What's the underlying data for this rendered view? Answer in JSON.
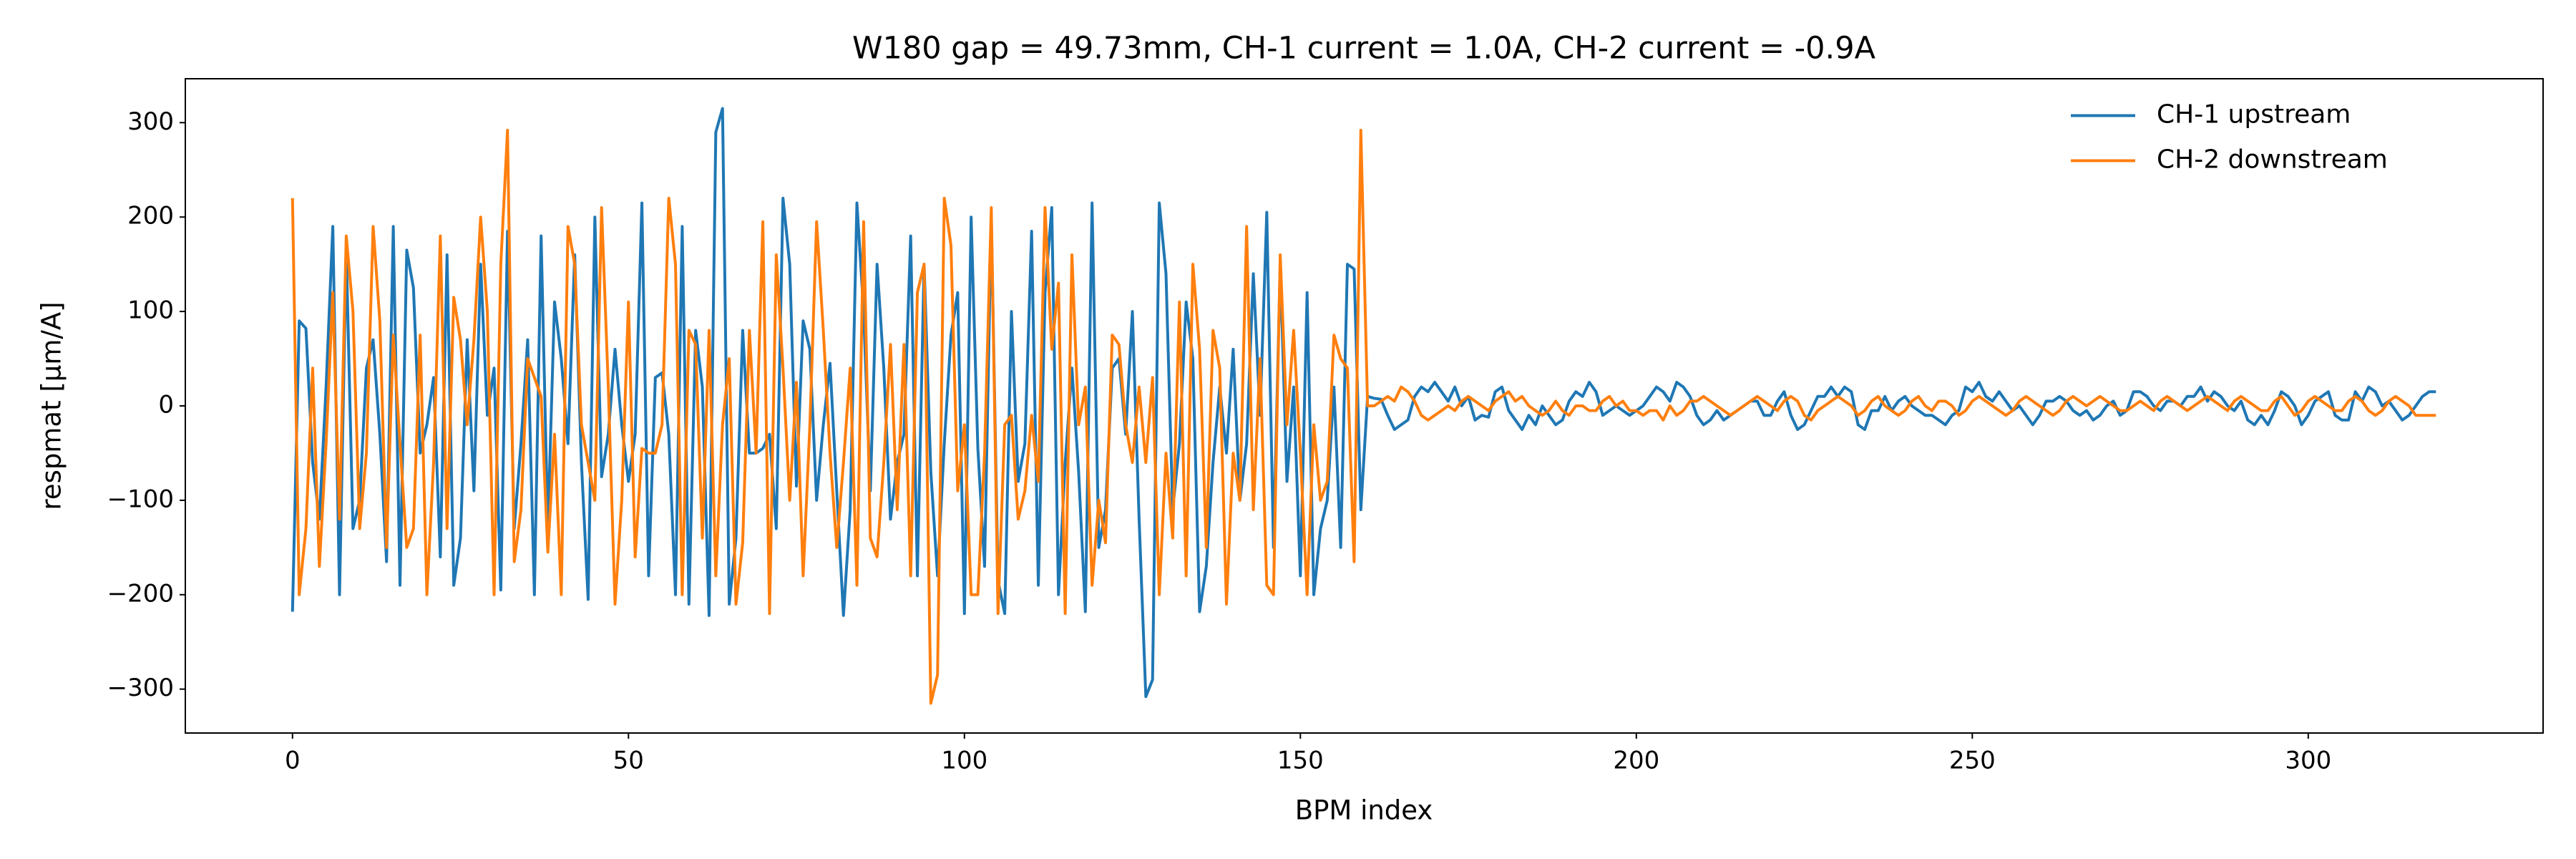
{
  "chart_data": {
    "type": "line",
    "title": "W180 gap = 49.73mm, CH-1 current = 1.0A, CH-2 current = -0.9A",
    "x_label": "BPM index",
    "y_label": "respmat [μm/A]",
    "x": [
      0,
      1,
      2,
      3,
      4,
      5,
      6,
      7,
      8,
      9,
      10,
      11,
      12,
      13,
      14,
      15,
      16,
      17,
      18,
      19,
      20,
      21,
      22,
      23,
      24,
      25,
      26,
      27,
      28,
      29,
      30,
      31,
      32,
      33,
      34,
      35,
      36,
      37,
      38,
      39,
      40,
      41,
      42,
      43,
      44,
      45,
      46,
      47,
      48,
      49,
      50,
      51,
      52,
      53,
      54,
      55,
      56,
      57,
      58,
      59,
      60,
      61,
      62,
      63,
      64,
      65,
      66,
      67,
      68,
      69,
      70,
      71,
      72,
      73,
      74,
      75,
      76,
      77,
      78,
      79,
      80,
      81,
      82,
      83,
      84,
      85,
      86,
      87,
      88,
      89,
      90,
      91,
      92,
      93,
      94,
      95,
      96,
      97,
      98,
      99,
      100,
      101,
      102,
      103,
      104,
      105,
      106,
      107,
      108,
      109,
      110,
      111,
      112,
      113,
      114,
      115,
      116,
      117,
      118,
      119,
      120,
      121,
      122,
      123,
      124,
      125,
      126,
      127,
      128,
      129,
      130,
      131,
      132,
      133,
      134,
      135,
      136,
      137,
      138,
      139,
      140,
      141,
      142,
      143,
      144,
      145,
      146,
      147,
      148,
      149,
      150,
      151,
      152,
      153,
      154,
      155,
      156,
      157,
      158,
      159,
      160,
      161,
      162,
      163,
      164,
      165,
      166,
      167,
      168,
      169,
      170,
      171,
      172,
      173,
      174,
      175,
      176,
      177,
      178,
      179,
      180,
      181,
      182,
      183,
      184,
      185,
      186,
      187,
      188,
      189,
      190,
      191,
      192,
      193,
      194,
      195,
      196,
      197,
      198,
      199,
      200,
      201,
      202,
      203,
      204,
      205,
      206,
      207,
      208,
      209,
      210,
      211,
      212,
      213,
      214,
      215,
      216,
      217,
      218,
      219,
      220,
      221,
      222,
      223,
      224,
      225,
      226,
      227,
      228,
      229,
      230,
      231,
      232,
      233,
      234,
      235,
      236,
      237,
      238,
      239,
      240,
      241,
      242,
      243,
      244,
      245,
      246,
      247,
      248,
      249,
      250,
      251,
      252,
      253,
      254,
      255,
      256,
      257,
      258,
      259,
      260,
      261,
      262,
      263,
      264,
      265,
      266,
      267,
      268,
      269,
      270,
      271,
      272,
      273,
      274,
      275,
      276,
      277,
      278,
      279,
      280,
      281,
      282,
      283,
      284,
      285,
      286,
      287,
      288,
      289,
      290,
      291,
      292,
      293,
      294,
      295,
      296,
      297,
      298,
      299,
      300,
      301,
      302,
      303,
      304,
      305,
      306,
      307,
      308,
      309,
      310,
      311,
      312,
      313,
      314,
      315,
      316,
      317,
      318,
      319
    ],
    "series": [
      {
        "name": "CH-1 upstream",
        "color": "#1f77b4",
        "values": [
          -218,
          90,
          82,
          -60,
          -120,
          20,
          190,
          -200,
          165,
          -130,
          -100,
          40,
          70,
          -30,
          -165,
          190,
          -190,
          165,
          125,
          -50,
          -20,
          30,
          -160,
          160,
          -190,
          -140,
          70,
          -90,
          150,
          -10,
          40,
          -195,
          185,
          -130,
          -40,
          70,
          -200,
          180,
          -130,
          110,
          50,
          -40,
          160,
          -60,
          -205,
          200,
          -75,
          -30,
          60,
          -20,
          -80,
          -30,
          215,
          -180,
          30,
          35,
          -30,
          -200,
          190,
          -210,
          80,
          20,
          -222,
          290,
          315,
          -210,
          -140,
          80,
          -50,
          -50,
          -45,
          -30,
          -130,
          220,
          150,
          -85,
          90,
          60,
          -100,
          -20,
          45,
          -90,
          -222,
          -110,
          215,
          100,
          -90,
          150,
          40,
          -120,
          -60,
          -30,
          180,
          -180,
          150,
          -70,
          -180,
          -40,
          75,
          120,
          -220,
          200,
          -45,
          -170,
          200,
          -185,
          -220,
          100,
          -80,
          -40,
          185,
          -190,
          120,
          210,
          -200,
          -60,
          40,
          -70,
          -218,
          215,
          -150,
          -110,
          40,
          50,
          -30,
          100,
          -120,
          -308,
          -290,
          215,
          140,
          -110,
          -40,
          110,
          50,
          -218,
          -170,
          -60,
          20,
          -50,
          60,
          -100,
          -40,
          140,
          -10,
          205,
          -150,
          150,
          -80,
          20,
          -180,
          120,
          -200,
          -130,
          -100,
          20,
          -150,
          150,
          145,
          -110,
          10,
          8,
          7,
          -10,
          -25,
          -20,
          -15,
          10,
          20,
          15,
          25,
          15,
          5,
          20,
          0,
          10,
          -15,
          -10,
          -12,
          15,
          20,
          -5,
          -15,
          -25,
          -10,
          -20,
          0,
          -10,
          -20,
          -15,
          5,
          15,
          10,
          25,
          15,
          -10,
          -5,
          0,
          -5,
          -10,
          -5,
          0,
          10,
          20,
          15,
          5,
          25,
          20,
          10,
          -10,
          -20,
          -15,
          -5,
          -15,
          -10,
          -5,
          0,
          5,
          5,
          -10,
          -10,
          5,
          15,
          -10,
          -25,
          -20,
          -5,
          10,
          10,
          20,
          10,
          20,
          15,
          -20,
          -25,
          -5,
          -5,
          10,
          -5,
          5,
          10,
          0,
          -5,
          -10,
          -10,
          -15,
          -20,
          -10,
          -5,
          20,
          15,
          25,
          10,
          5,
          15,
          5,
          -5,
          0,
          -10,
          -20,
          -10,
          5,
          5,
          10,
          5,
          -5,
          -10,
          -5,
          -15,
          -10,
          0,
          5,
          -10,
          -5,
          15,
          15,
          10,
          0,
          -5,
          5,
          5,
          0,
          10,
          10,
          20,
          5,
          15,
          10,
          0,
          -5,
          5,
          -15,
          -20,
          -10,
          -20,
          -5,
          15,
          10,
          0,
          -20,
          -10,
          5,
          10,
          15,
          -10,
          -15,
          -15,
          15,
          5,
          20,
          15,
          0,
          5,
          -5,
          -15,
          -10,
          0,
          10,
          15,
          15
        ]
      },
      {
        "name": "CH-2 downstream",
        "color": "#ff7f0e",
        "values": [
          220,
          -200,
          -130,
          40,
          -170,
          -40,
          120,
          -120,
          180,
          100,
          -130,
          -50,
          190,
          90,
          -150,
          75,
          -40,
          -150,
          -130,
          75,
          -200,
          -60,
          180,
          -130,
          115,
          70,
          -20,
          70,
          200,
          100,
          -200,
          150,
          292,
          -165,
          -110,
          50,
          30,
          10,
          -155,
          -30,
          -200,
          190,
          150,
          -20,
          -60,
          -100,
          210,
          20,
          -210,
          -100,
          110,
          -160,
          -45,
          -50,
          -50,
          -20,
          220,
          150,
          -200,
          80,
          65,
          -140,
          80,
          -180,
          -20,
          50,
          -210,
          -145,
          80,
          -50,
          195,
          -220,
          160,
          40,
          -100,
          25,
          -180,
          -20,
          195,
          80,
          -50,
          -150,
          -60,
          40,
          -190,
          195,
          -140,
          -160,
          -60,
          65,
          -110,
          65,
          -180,
          120,
          150,
          -315,
          -285,
          220,
          170,
          -90,
          -20,
          -200,
          -200,
          -50,
          210,
          -220,
          -20,
          -10,
          -120,
          -90,
          -10,
          -80,
          210,
          60,
          130,
          -220,
          160,
          -20,
          20,
          -190,
          -100,
          -145,
          75,
          65,
          -20,
          -60,
          20,
          -60,
          30,
          -200,
          -50,
          -140,
          110,
          -180,
          150,
          60,
          -150,
          80,
          40,
          -210,
          -50,
          -100,
          190,
          -110,
          50,
          -190,
          -200,
          160,
          -20,
          80,
          -50,
          -200,
          -20,
          -100,
          -80,
          75,
          50,
          40,
          -165,
          292,
          0,
          0,
          5,
          10,
          5,
          20,
          15,
          5,
          -10,
          -15,
          -10,
          -5,
          0,
          -5,
          5,
          10,
          5,
          0,
          -5,
          5,
          10,
          15,
          5,
          10,
          0,
          -5,
          -10,
          -5,
          5,
          -5,
          -10,
          0,
          0,
          -5,
          -5,
          5,
          10,
          0,
          5,
          -5,
          -5,
          -10,
          -5,
          -5,
          -15,
          0,
          -10,
          -5,
          5,
          5,
          10,
          5,
          0,
          -5,
          -10,
          -5,
          0,
          5,
          10,
          5,
          0,
          -5,
          5,
          10,
          5,
          -10,
          -15,
          -5,
          0,
          5,
          10,
          5,
          0,
          -10,
          -5,
          5,
          10,
          0,
          -5,
          -10,
          -5,
          5,
          10,
          0,
          -5,
          5,
          5,
          0,
          -10,
          -5,
          5,
          10,
          5,
          0,
          -5,
          -10,
          -5,
          5,
          10,
          5,
          0,
          -5,
          -10,
          -5,
          5,
          10,
          5,
          0,
          5,
          10,
          5,
          0,
          -5,
          -5,
          0,
          5,
          0,
          -5,
          5,
          10,
          5,
          0,
          -5,
          0,
          5,
          10,
          5,
          0,
          -5,
          5,
          10,
          5,
          0,
          -5,
          -5,
          5,
          10,
          0,
          -10,
          -5,
          5,
          10,
          5,
          0,
          -5,
          -5,
          5,
          10,
          5,
          -5,
          -10,
          -5,
          5,
          10,
          5,
          0,
          -10,
          -10,
          -10,
          -10
        ]
      }
    ],
    "xlim": [
      -15.95,
      334.95
    ],
    "xticks": [
      0,
      50,
      100,
      150,
      200,
      250,
      300
    ],
    "ylim": [
      -346.5,
      346.5
    ],
    "yticks": [
      {
        "value": -300,
        "label": "−300"
      },
      {
        "value": -200,
        "label": "−200"
      },
      {
        "value": -100,
        "label": "−100"
      },
      0,
      100,
      200,
      300
    ],
    "grid": false,
    "legend": "upper right"
  }
}
